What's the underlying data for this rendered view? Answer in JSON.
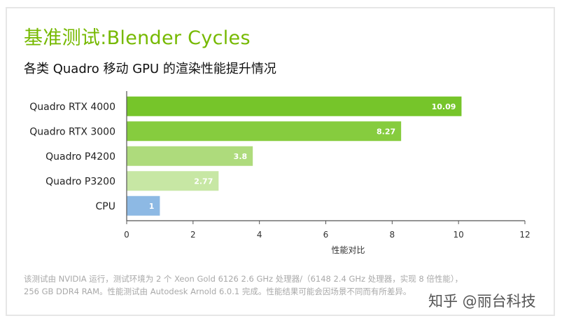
{
  "header": {
    "title": "基准测试:Blender Cycles",
    "subtitle": "各类 Quadro 移动 GPU 的渲染性能提升情况"
  },
  "chart_data": {
    "type": "bar",
    "orientation": "horizontal",
    "categories": [
      "Quadro RTX 4000",
      "Quadro RTX 3000",
      "Quadro P4200",
      "Quadro P3200",
      "CPU"
    ],
    "values": [
      10.09,
      8.27,
      3.8,
      2.77,
      1
    ],
    "value_labels": [
      "10.09",
      "8.27",
      "3.8",
      "2.77",
      "1"
    ],
    "bar_colors": [
      "#76c52a",
      "#86cc3e",
      "#aedb7c",
      "#c7e7a4",
      "#8db9e4"
    ],
    "xlabel": "性能对比",
    "xlim": [
      0,
      12
    ],
    "xticks": [
      0,
      2,
      4,
      6,
      8,
      10,
      12
    ],
    "grid": false,
    "legend": "none"
  },
  "footnote": {
    "line1": "该测试由 NVIDIA 运行，测试环境为 2 个 Xeon Gold 6126 2.6 GHz 处理器/（6148 2.4 GHz 处理器，实现 8 倍性能），",
    "line2": "256 GB DDR4 RAM。性能测试由 Autodesk Arnold 6.0.1 完成。性能结果可能会因场景不同而有所差异。"
  },
  "watermark": "知乎 @丽台科技",
  "colors": {
    "accent": "#76b900",
    "axis": "#555555",
    "label": "#222222"
  }
}
